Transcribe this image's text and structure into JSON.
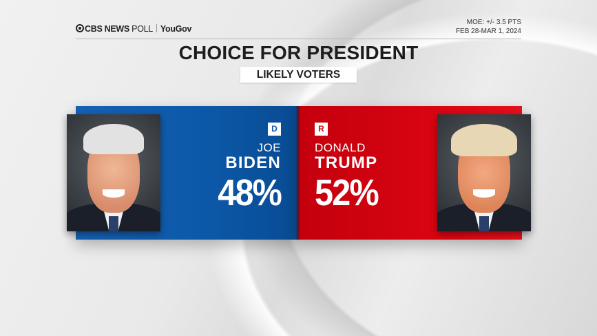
{
  "header": {
    "brand": "CBS NEWS",
    "brand_suffix": "POLL",
    "partner": "YouGov",
    "moe": "MOE: +/- 3.5 PTS",
    "dates": "FEB 28-MAR 1, 2024"
  },
  "title": "CHOICE FOR PRESIDENT",
  "subtitle": "LIKELY VOTERS",
  "candidates": [
    {
      "party": "D",
      "first": "JOE",
      "last": "BIDEN",
      "pct": "48%",
      "color": "#0c58a8"
    },
    {
      "party": "R",
      "first": "DONALD",
      "last": "TRUMP",
      "pct": "52%",
      "color": "#d20510"
    }
  ],
  "chart_data": {
    "type": "bar",
    "title": "CHOICE FOR PRESIDENT",
    "subtitle": "LIKELY VOTERS",
    "categories": [
      "Joe Biden (D)",
      "Donald Trump (R)"
    ],
    "values": [
      48,
      52
    ],
    "unit": "%",
    "colors": [
      "#0c58a8",
      "#d20510"
    ],
    "source": "CBS News Poll / YouGov",
    "moe": "+/- 3.5 pts",
    "dates": "Feb 28-Mar 1, 2024"
  }
}
